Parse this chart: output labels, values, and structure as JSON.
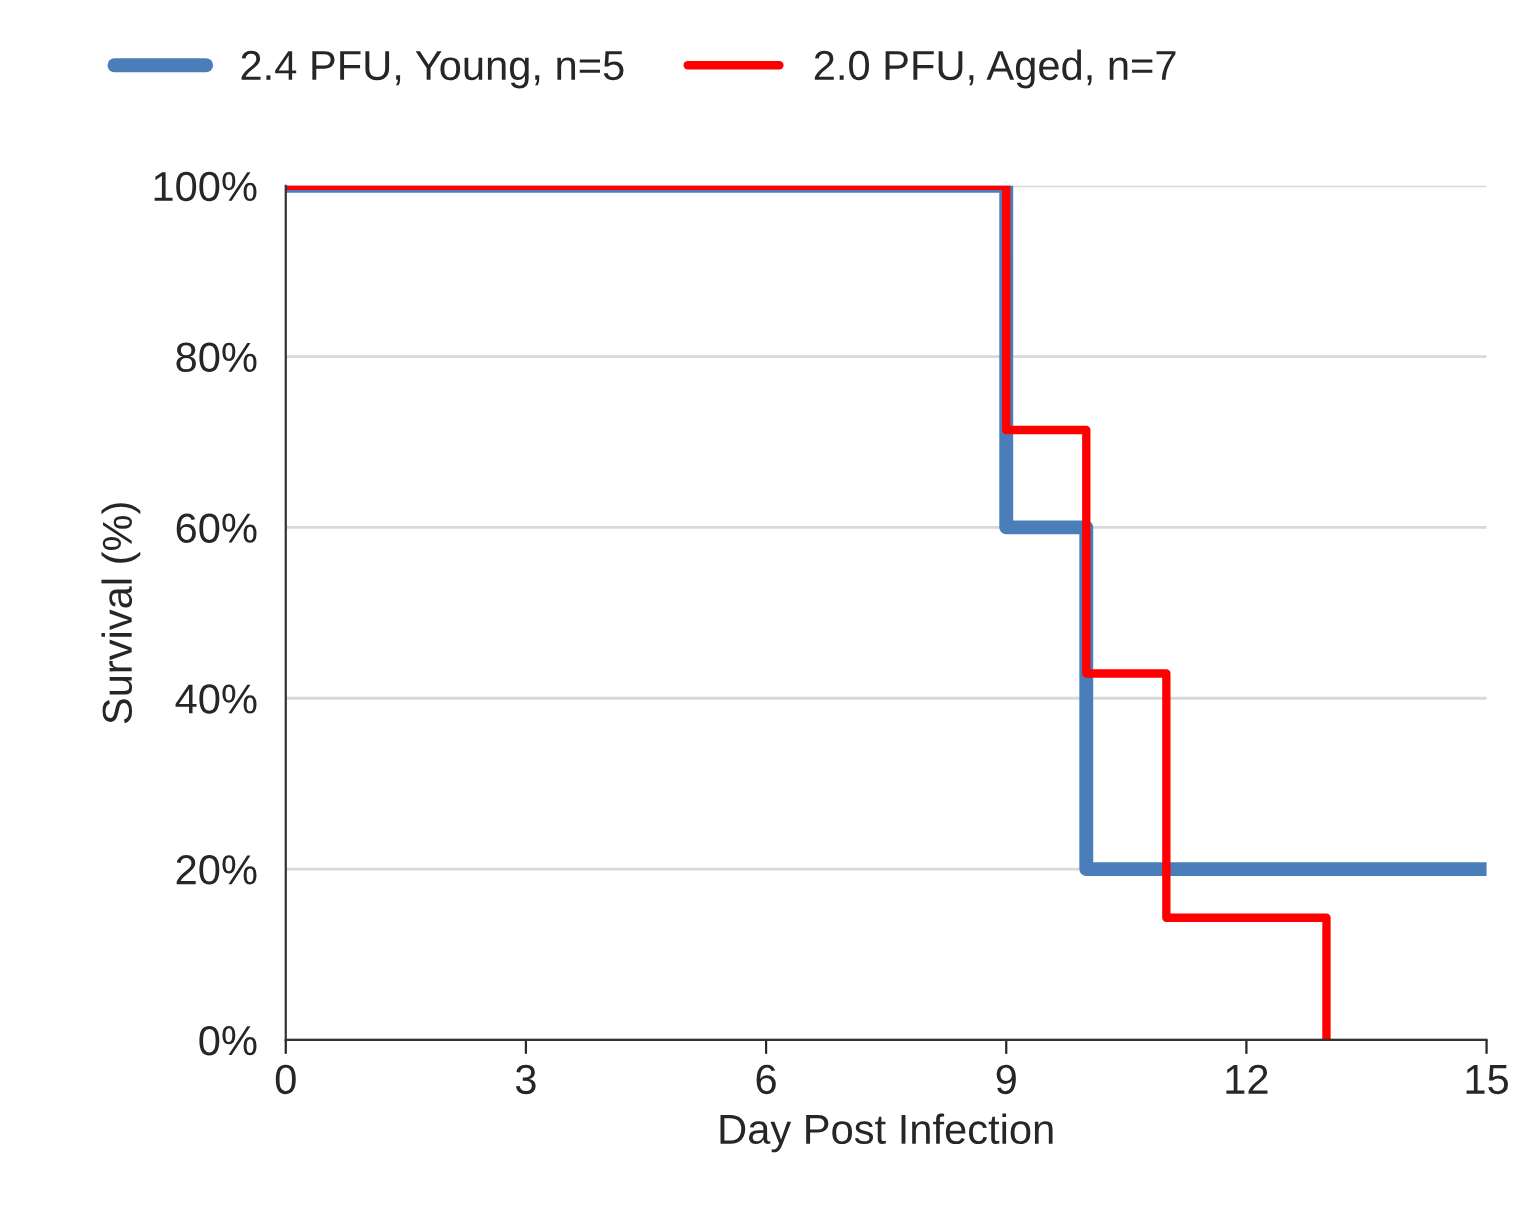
{
  "chart_data": {
    "type": "step",
    "xlabel": "Day Post Infection",
    "ylabel": "Survival (%)",
    "series": [
      {
        "name": "2.4 PFU, Young, n=5",
        "color": "#4a7ebb",
        "x": [
          0,
          9,
          10,
          15
        ],
        "values": [
          100,
          60,
          20,
          20
        ]
      },
      {
        "name": "2.0 PFU, Aged, n=7",
        "color": "#ff0000",
        "x": [
          0,
          9,
          10,
          11,
          13
        ],
        "values": [
          100,
          71.4,
          42.9,
          14.3,
          0
        ]
      }
    ],
    "xlim": [
      0,
      15
    ],
    "xticks": [
      0,
      3,
      6,
      9,
      12,
      15
    ],
    "ylim": [
      0,
      100
    ],
    "yticks": [
      {
        "value": 0,
        "label": "0%"
      },
      {
        "value": 20,
        "label": "20%"
      },
      {
        "value": 40,
        "label": "40%"
      },
      {
        "value": 60,
        "label": "60%"
      },
      {
        "value": 80,
        "label": "80%"
      },
      {
        "value": 100,
        "label": "100%"
      }
    ],
    "grid": "y",
    "legend": "top",
    "line_style": "solid",
    "marker": "none"
  }
}
